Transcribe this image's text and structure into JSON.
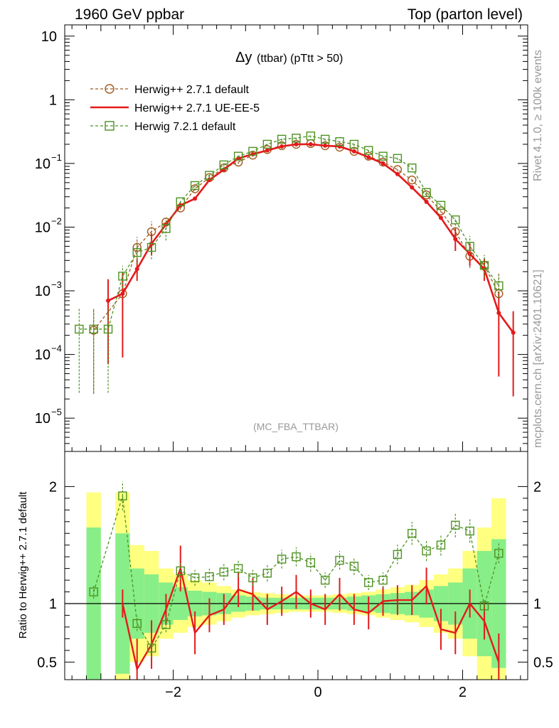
{
  "header": {
    "left": "1960 GeV ppbar",
    "right": "Top (parton level)"
  },
  "side": {
    "rivet": "Rivet 4.1.0, ≥ 100k events",
    "mcplots": "mcplots.cern.ch [arXiv:2401.10621]"
  },
  "chart_data": [
    {
      "type": "line",
      "panel": "main",
      "title_main": "Δy",
      "title_sub": "(ttbar) (pTtt > 50)",
      "watermark": "(MC_FBA_TTBAR)",
      "xlabel": "",
      "ylabel": "",
      "yscale": "log",
      "xlim": [
        -3.5,
        2.9
      ],
      "ylim": [
        3e-06,
        15
      ],
      "yticks": [
        {
          "value": 1e-05,
          "base": "10",
          "exp": "−5"
        },
        {
          "value": 0.0001,
          "base": "10",
          "exp": "−4"
        },
        {
          "value": 0.001,
          "base": "10",
          "exp": "−3"
        },
        {
          "value": 0.01,
          "base": "10",
          "exp": "−2"
        },
        {
          "value": 0.1,
          "base": "10",
          "exp": "−1"
        },
        {
          "value": 1,
          "base": "1",
          "exp": ""
        },
        {
          "value": 10,
          "base": "10",
          "exp": ""
        }
      ],
      "legend_position": "top-left",
      "series": [
        {
          "name": "Herwig++ 2.7.1 default",
          "color": "#a05a1e",
          "style": "dashed-circle",
          "x": [
            -3.1,
            -2.7,
            -2.5,
            -2.3,
            -2.1,
            -1.9,
            -1.7,
            -1.5,
            -1.3,
            -1.1,
            -0.9,
            -0.7,
            -0.5,
            -0.3,
            -0.1,
            0.1,
            0.3,
            0.5,
            0.7,
            0.9,
            1.1,
            1.3,
            1.5,
            1.7,
            1.9,
            2.1,
            2.3,
            2.5
          ],
          "values": [
            0.00024,
            0.0009,
            0.0048,
            0.0085,
            0.012,
            0.02,
            0.04,
            0.06,
            0.085,
            0.105,
            0.135,
            0.165,
            0.19,
            0.2,
            0.205,
            0.19,
            0.18,
            0.155,
            0.13,
            0.105,
            0.08,
            0.055,
            0.032,
            0.018,
            0.0085,
            0.0035,
            0.0025,
            0.0009
          ]
        },
        {
          "name": "Herwig++ 2.7.1 UE-EE-5",
          "color": "#e41a1c",
          "style": "solid",
          "x": [
            -2.9,
            -2.7,
            -2.5,
            -2.3,
            -2.1,
            -1.9,
            -1.7,
            -1.5,
            -1.3,
            -1.1,
            -0.9,
            -0.7,
            -0.5,
            -0.3,
            -0.1,
            0.1,
            0.3,
            0.5,
            0.7,
            0.9,
            1.1,
            1.3,
            1.5,
            1.7,
            1.9,
            2.1,
            2.3,
            2.5,
            2.7
          ],
          "values": [
            0.0007,
            0.0009,
            0.0022,
            0.0055,
            0.011,
            0.022,
            0.028,
            0.055,
            0.08,
            0.12,
            0.14,
            0.16,
            0.185,
            0.2,
            0.2,
            0.19,
            0.185,
            0.155,
            0.125,
            0.1,
            0.068,
            0.042,
            0.025,
            0.014,
            0.0065,
            0.0038,
            0.0022,
            0.00045,
            0.00022
          ]
        },
        {
          "name": "Herwig 7.2.1 default",
          "color": "#4d9221",
          "style": "dashed-square",
          "x": [
            -3.3,
            -3.1,
            -2.9,
            -2.7,
            -2.5,
            -2.3,
            -2.1,
            -1.9,
            -1.7,
            -1.5,
            -1.3,
            -1.1,
            -0.9,
            -0.7,
            -0.5,
            -0.3,
            -0.1,
            0.1,
            0.3,
            0.5,
            0.7,
            0.9,
            1.1,
            1.3,
            1.5,
            1.7,
            1.9,
            2.1,
            2.3,
            2.5
          ],
          "values": [
            0.00025,
            0.00025,
            0.00025,
            0.0017,
            0.004,
            0.0048,
            0.0095,
            0.025,
            0.045,
            0.065,
            0.095,
            0.13,
            0.155,
            0.2,
            0.24,
            0.25,
            0.27,
            0.24,
            0.22,
            0.2,
            0.16,
            0.13,
            0.12,
            0.085,
            0.035,
            0.022,
            0.013,
            0.005,
            0.0025,
            0.0012
          ]
        }
      ]
    },
    {
      "type": "line",
      "panel": "ratio",
      "ylabel": "Ratio to Herwig++ 2.7.1 default",
      "xlim": [
        -3.5,
        2.9
      ],
      "ylim": [
        0.35,
        2.3
      ],
      "xticks": [
        -2,
        0,
        2
      ],
      "xtick_labels": [
        "−2",
        "0",
        "2"
      ],
      "yticks": [
        0.5,
        1,
        2
      ],
      "ytick_labels": [
        "0.5",
        "1",
        "2"
      ],
      "band_x": [
        -3.3,
        -3.1,
        -2.9,
        -2.7,
        -2.5,
        -2.3,
        -2.1,
        -1.9,
        -1.7,
        -1.5,
        -1.3,
        -1.1,
        -0.9,
        -0.7,
        -0.5,
        -0.3,
        -0.1,
        0.1,
        0.3,
        0.5,
        0.7,
        0.9,
        1.1,
        1.3,
        1.5,
        1.7,
        1.9,
        2.1,
        2.3,
        2.5
      ],
      "band_outer": [
        null,
        1.95,
        null,
        1.95,
        1.5,
        1.45,
        1.3,
        1.25,
        1.2,
        1.18,
        1.15,
        1.12,
        1.1,
        1.09,
        1.08,
        1.07,
        1.07,
        1.07,
        1.08,
        1.09,
        1.1,
        1.12,
        1.14,
        1.16,
        1.2,
        1.25,
        1.3,
        1.45,
        1.65,
        1.9
      ],
      "band_inner": [
        null,
        1.65,
        null,
        1.6,
        1.3,
        1.25,
        1.18,
        1.14,
        1.11,
        1.1,
        1.09,
        1.07,
        1.06,
        1.05,
        1.05,
        1.05,
        1.05,
        1.05,
        1.05,
        1.06,
        1.07,
        1.08,
        1.09,
        1.1,
        1.12,
        1.15,
        1.18,
        1.3,
        1.45,
        1.55
      ],
      "series": [
        {
          "name": "Herwig++ 2.7.1 UE-EE-5",
          "color": "#e41a1c",
          "x": [
            -2.7,
            -2.5,
            -2.3,
            -2.1,
            -1.9,
            -1.7,
            -1.5,
            -1.3,
            -1.1,
            -0.9,
            -0.7,
            -0.5,
            -0.3,
            -0.1,
            0.1,
            0.3,
            0.5,
            0.7,
            0.9,
            1.1,
            1.3,
            1.5,
            1.7,
            1.9,
            2.1,
            2.3,
            2.5
          ],
          "values": [
            1.0,
            0.44,
            0.65,
            0.95,
            1.3,
            0.75,
            0.9,
            0.95,
            1.12,
            1.08,
            0.95,
            1.02,
            1.1,
            1.0,
            0.95,
            1.08,
            0.95,
            0.92,
            1.02,
            1.03,
            1.03,
            1.15,
            0.78,
            0.75,
            1.0,
            0.85,
            0.5
          ]
        },
        {
          "name": "Herwig 7.2.1 default",
          "color": "#4d9221",
          "x": [
            -3.1,
            -2.7,
            -2.5,
            -2.3,
            -2.1,
            -1.9,
            -1.7,
            -1.5,
            -1.3,
            -1.1,
            -0.9,
            -0.7,
            -0.5,
            -0.3,
            -0.1,
            0.1,
            0.3,
            0.5,
            0.7,
            0.9,
            1.1,
            1.3,
            1.5,
            1.7,
            1.9,
            2.1,
            2.3,
            2.5
          ],
          "values": [
            1.1,
            1.92,
            0.83,
            0.62,
            0.82,
            1.28,
            1.22,
            1.23,
            1.27,
            1.3,
            1.22,
            1.26,
            1.38,
            1.4,
            1.35,
            1.2,
            1.37,
            1.32,
            1.18,
            1.2,
            1.42,
            1.6,
            1.45,
            1.5,
            1.67,
            1.62,
            0.98,
            1.43
          ]
        }
      ]
    }
  ]
}
